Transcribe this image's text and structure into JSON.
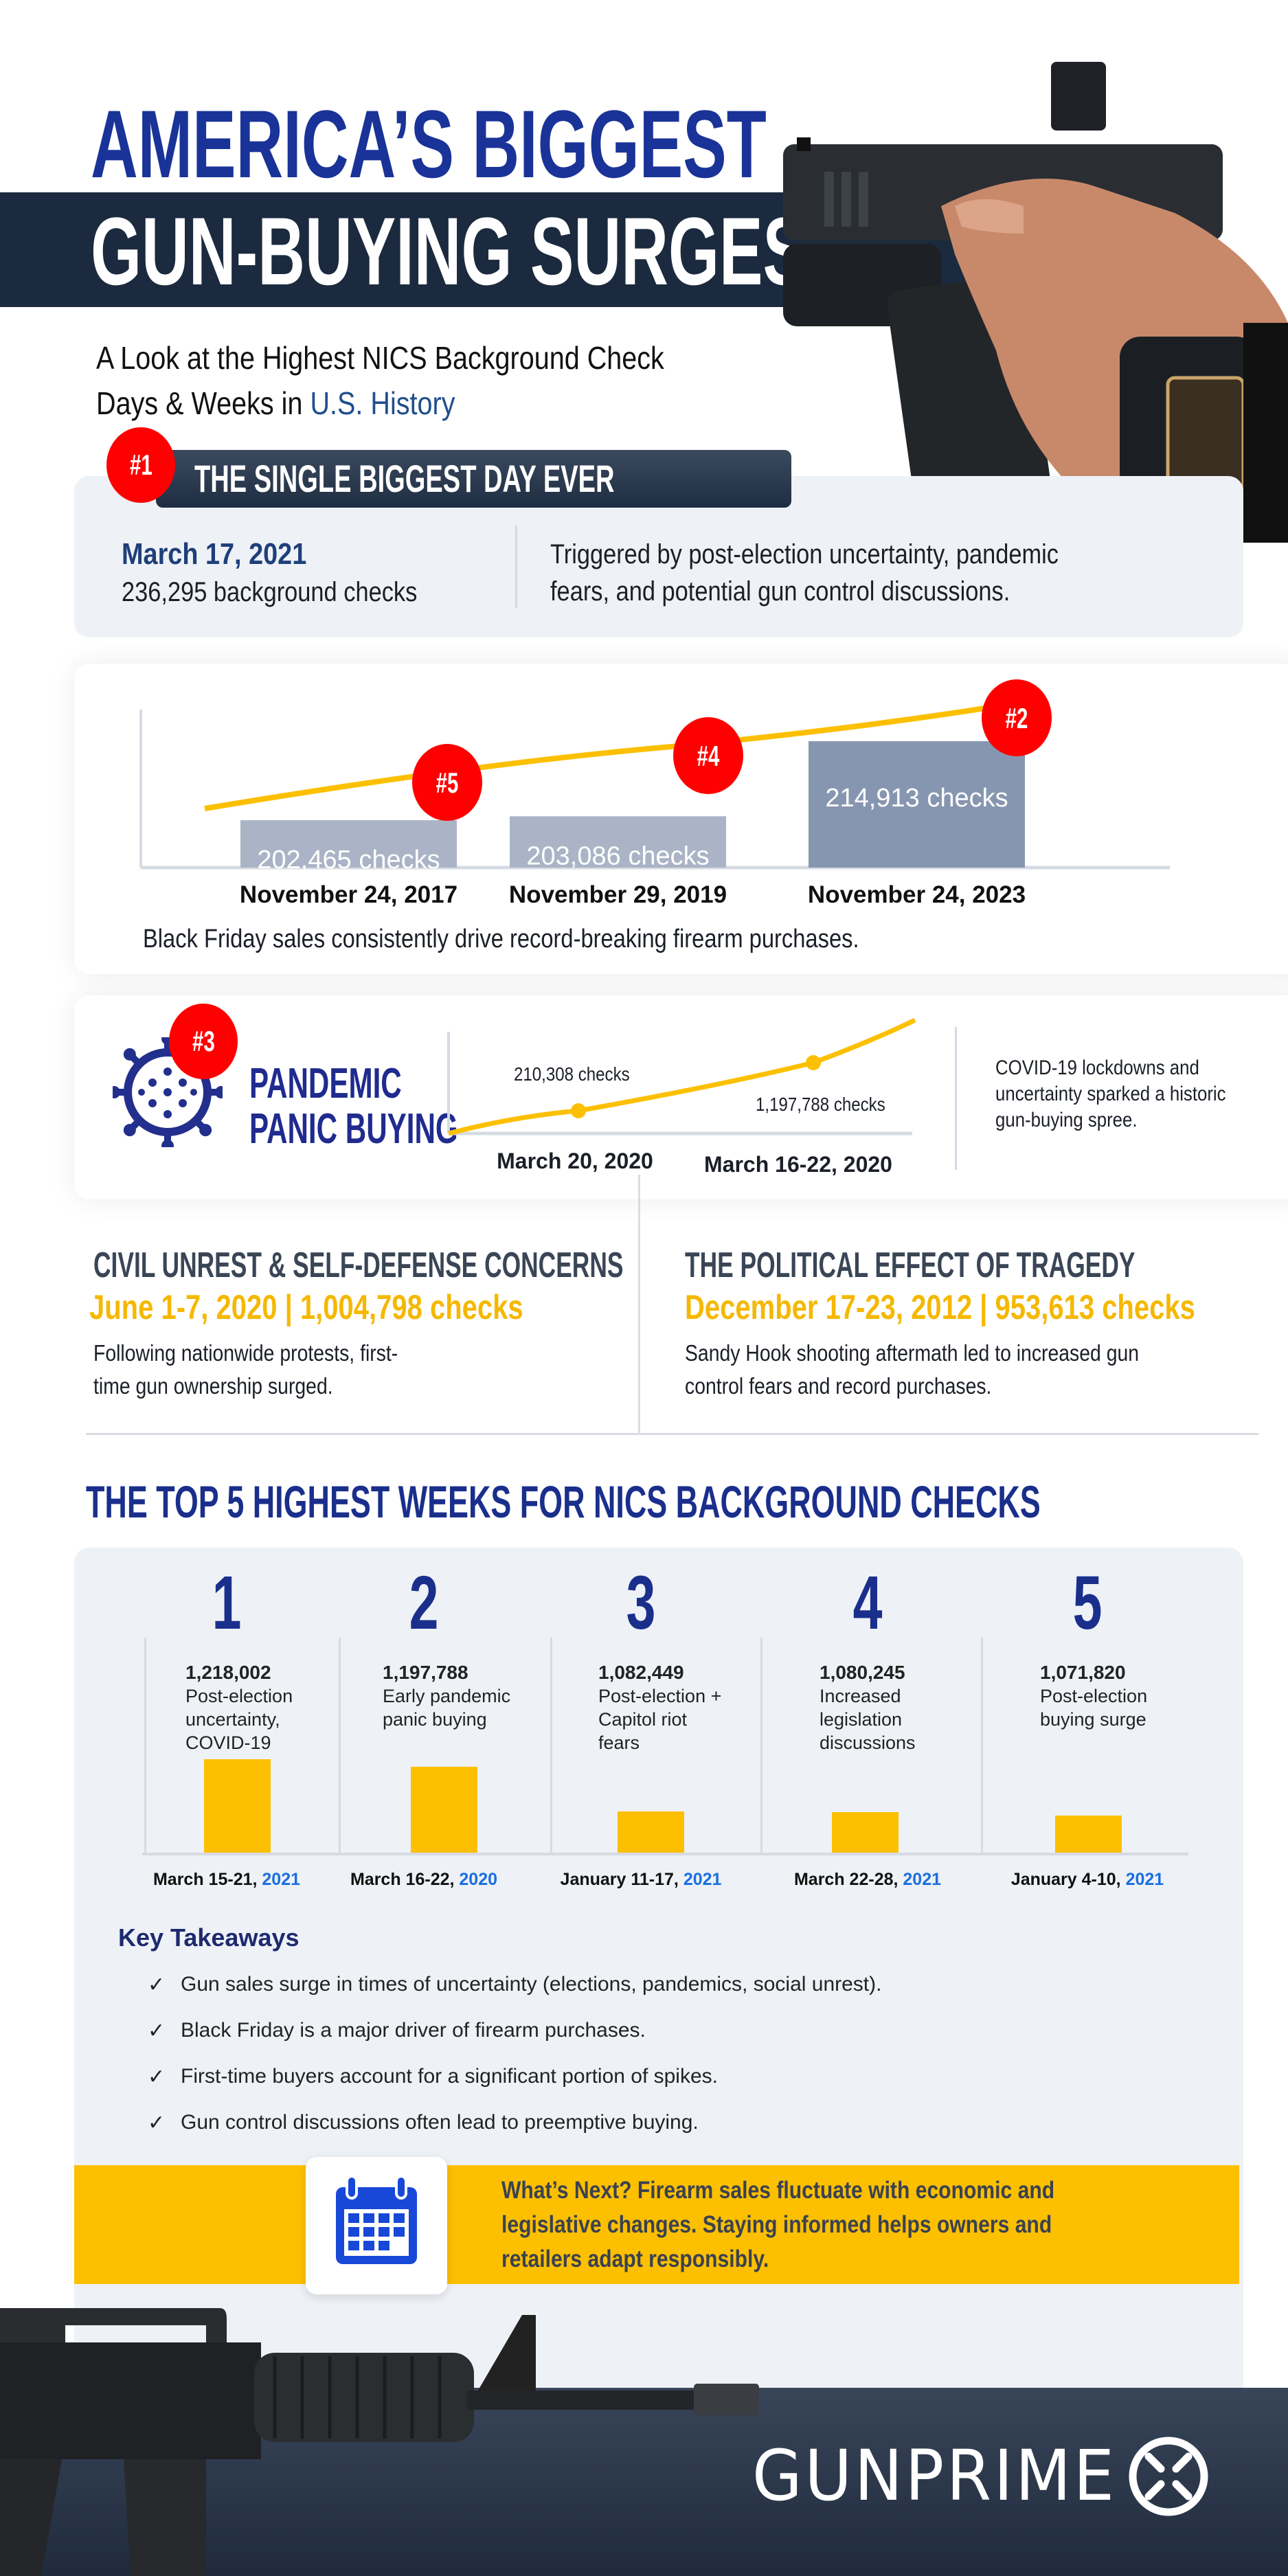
{
  "header": {
    "title_line1": "AMERICA’S BIGGEST",
    "title_line2": "GUN-BUYING SURGES",
    "subtitle_line1": "A Look at the Highest NICS Background Check",
    "subtitle_line2_a": "Days & Weeks in ",
    "subtitle_line2_b": "U.S. History"
  },
  "biggest_day": {
    "rank": "#1",
    "banner": "THE SINGLE BIGGEST DAY EVER",
    "date": "March 17, 2021",
    "checks": "236,295 background checks",
    "desc_line1": "Triggered by post-election uncertainty, pandemic",
    "desc_line2": "fears, and potential gun control discussions."
  },
  "black_friday": {
    "bars": [
      {
        "rank": "#5",
        "label": "202,465  checks",
        "date": "November 24, 2017",
        "value": 202465
      },
      {
        "rank": "#4",
        "label": "203,086 checks",
        "date": "November 29, 2019",
        "value": 203086
      },
      {
        "rank": "#2",
        "label": "214,913 checks",
        "date": "November 24, 2023",
        "value": 214913
      }
    ],
    "caption": "Black Friday sales consistently drive record-breaking firearm purchases."
  },
  "pandemic": {
    "rank": "#3",
    "title_line1": "PANDEMIC",
    "title_line2": "PANIC BUYING",
    "point1_label": "210,308 checks",
    "point1_date": "March 20, 2020",
    "point2_label": "1,197,788 checks",
    "point2_date": "March 16-22, 2020",
    "desc_line1": "COVID-19 lockdowns and",
    "desc_line2": "uncertainty sparked a historic",
    "desc_line3": "gun-buying spree."
  },
  "civil_unrest": {
    "heading": "CIVIL UNREST & SELF-DEFENSE CONCERNS",
    "stat": "June 1-7, 2020 | 1,004,798 checks",
    "body_line1": "Following nationwide protests, first-",
    "body_line2": "time gun ownership surged."
  },
  "tragedy": {
    "heading": "THE POLITICAL EFFECT OF TRAGEDY",
    "stat": "December 17-23, 2012 | 953,613 checks",
    "body_line1": "Sandy Hook shooting aftermath led to increased gun",
    "body_line2": "control fears and record purchases."
  },
  "top5": {
    "heading": "THE TOP 5 HIGHEST WEEKS FOR NICS BACKGROUND CHECKS",
    "weeks": [
      {
        "rank": "1",
        "value": "1,218,002",
        "checks": 1218002,
        "desc": "Post-election uncertainty, COVID-19",
        "date": "March 15-21, ",
        "year": "2021"
      },
      {
        "rank": "2",
        "value": "1,197,788",
        "checks": 1197788,
        "desc": "Early pandemic panic buying",
        "date": "March 16-22, ",
        "year": "2020"
      },
      {
        "rank": "3",
        "value": "1,082,449",
        "checks": 1082449,
        "desc": "Post-election + Capitol riot fears",
        "date": "January 11-17, ",
        "year": "2021"
      },
      {
        "rank": "4",
        "value": "1,080,245",
        "checks": 1080245,
        "desc": "Increased legislation discussions",
        "date": "March 22-28, ",
        "year": "2021"
      },
      {
        "rank": "5",
        "value": "1,071,820",
        "checks": 1071820,
        "desc": "Post-election buying surge",
        "date": "January 4-10, ",
        "year": "2021"
      }
    ]
  },
  "takeaways": {
    "heading": "Key Takeaways",
    "check_icon": "✓",
    "items": [
      "Gun sales surge in times of uncertainty (elections, pandemics, social unrest).",
      "Black Friday is a major driver of firearm purchases.",
      "First-time buyers account for a significant portion of spikes.",
      "Gun control discussions often lead to preemptive buying."
    ]
  },
  "whats_next": {
    "icon": "calendar-icon",
    "line1": "What’s Next? Firearm sales fluctuate with economic and",
    "line2": "legislative changes. Staying informed helps owners and",
    "line3": "retailers adapt responsibly."
  },
  "footer": {
    "logo": "GUNPRIME"
  },
  "colors": {
    "navy": "#1a2f8c",
    "dark_band": "#1b2a3e",
    "yellow": "#fcc000",
    "red": "#ff0000",
    "card_gray": "#eef1f6",
    "year_blue": "#1a6fe0"
  }
}
